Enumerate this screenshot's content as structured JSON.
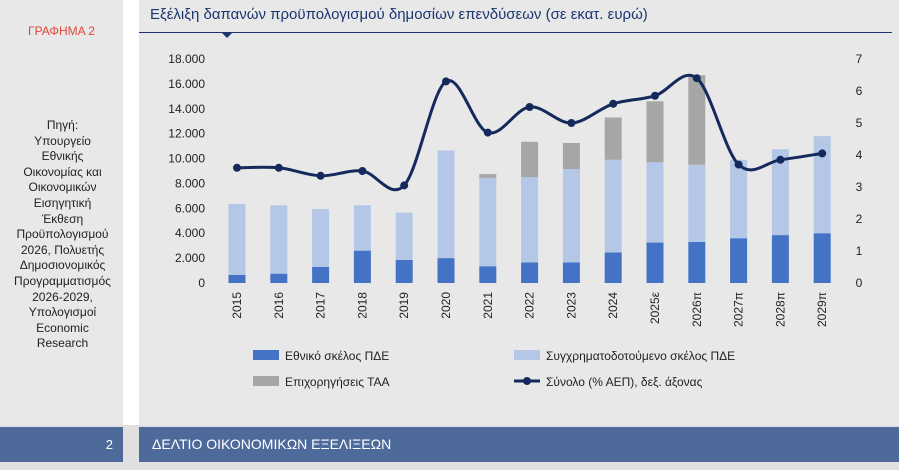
{
  "sidebar": {
    "figure_label": "ΓΡΑΦΗΜΑ 2",
    "source": "Πηγή:\nΥπουργείο\nΕθνικής\nΟικονομίας και\nΟικονομικών\nΕισηγητική\nΈκθεση\nΠροϋπολογισμού\n2026, Πολυετής\nΔημοσιονομικός\nΠρογραμματισμός\n2026-2029,\nΥπολογισμοί\nEconomic\nResearch"
  },
  "footer": {
    "page_number": "2",
    "title": "ΔΕΛΤΙΟ ΟΙΚΟΝΟΜΙΚΩΝ ΕΞΕΛΙΞΕΩΝ"
  },
  "colors": {
    "panel_bg": "#e8e8e8",
    "accent_red": "#e0463c",
    "navy": "#1b3570",
    "footer_blue": "#4d6a9b",
    "national_bar": "#4472c4",
    "cofinanced_bar": "#b4c7e7",
    "grants_bar": "#a6a6a6",
    "total_line": "#152a5c"
  },
  "chart_data": {
    "type": "bar",
    "stacked": true,
    "title": "Εξέλιξη δαπανών προϋπολογισμού δημοσίων επενδύσεων (σε εκατ. ευρώ)",
    "categories": [
      "2015",
      "2016",
      "2017",
      "2018",
      "2019",
      "2020",
      "2021",
      "2022",
      "2023",
      "2024",
      "2025ε",
      "2026π",
      "2027π",
      "2028π",
      "2029π"
    ],
    "y_ticks": [
      "0",
      "2.000",
      "4.000",
      "6.000",
      "8.000",
      "10.000",
      "12.000",
      "14.000",
      "16.000",
      "18.000"
    ],
    "y2_ticks": [
      "0",
      "1",
      "2",
      "3",
      "4",
      "5",
      "6",
      "7"
    ],
    "ylim": [
      0,
      18000
    ],
    "y2lim": [
      0,
      7
    ],
    "series": [
      {
        "name": "Εθνικό σκέλος ΠΔΕ",
        "kind": "bar",
        "values": [
          650,
          750,
          1300,
          2600,
          1850,
          2000,
          1350,
          1650,
          1650,
          2450,
          3250,
          3300,
          3600,
          3850,
          4000
        ]
      },
      {
        "name": "Συγχρηματοδοτούμενο σκέλος ΠΔΕ",
        "kind": "bar",
        "values": [
          5700,
          5500,
          4650,
          3650,
          3800,
          8650,
          7100,
          6850,
          7500,
          7450,
          6450,
          6200,
          6300,
          6900,
          7800
        ]
      },
      {
        "name": "Επιχορηγήσεις ΤΑΑ",
        "kind": "bar",
        "values": [
          0,
          0,
          0,
          0,
          0,
          0,
          300,
          2850,
          2100,
          3400,
          4900,
          7200,
          0,
          0,
          0
        ]
      },
      {
        "name": "Σύνολο (% ΑΕΠ), δεξ. άξονας",
        "kind": "line",
        "axis": "right",
        "values": [
          3.6,
          3.6,
          3.35,
          3.5,
          3.05,
          6.3,
          4.7,
          5.5,
          5.0,
          5.6,
          5.85,
          6.4,
          3.7,
          3.85,
          4.05
        ]
      }
    ],
    "legend_position": "bottom",
    "grid": false
  }
}
